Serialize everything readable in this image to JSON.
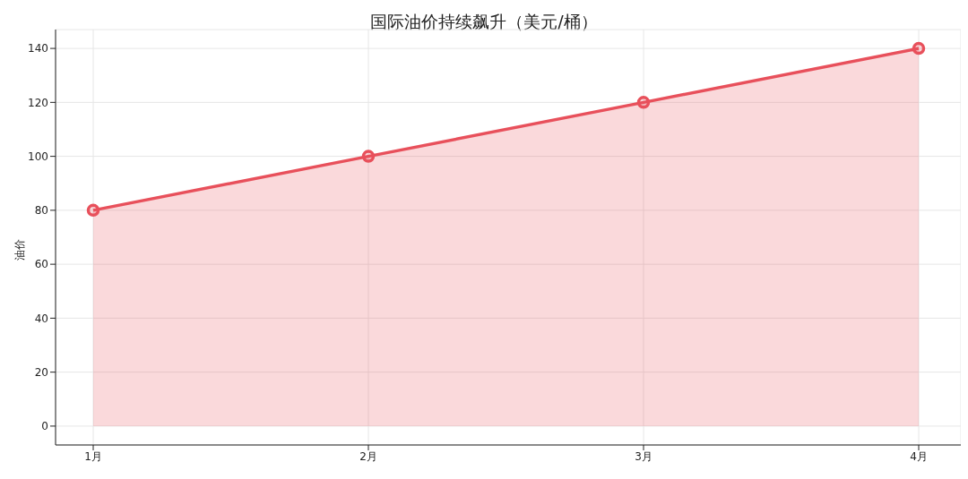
{
  "chart_data": {
    "type": "area",
    "title": "国际油价持续飙升（美元/桶）",
    "ylabel": "油价",
    "categories": [
      "1月",
      "2月",
      "3月",
      "4月"
    ],
    "series": [
      {
        "color": "#e8505b",
        "values": [
          80,
          100,
          120,
          140
        ]
      }
    ],
    "ylim": [
      -7,
      147
    ],
    "yticks": [
      0,
      20,
      40,
      60,
      80,
      100,
      120,
      140
    ],
    "grid": true,
    "marker": "circle",
    "line_style": "solid"
  }
}
